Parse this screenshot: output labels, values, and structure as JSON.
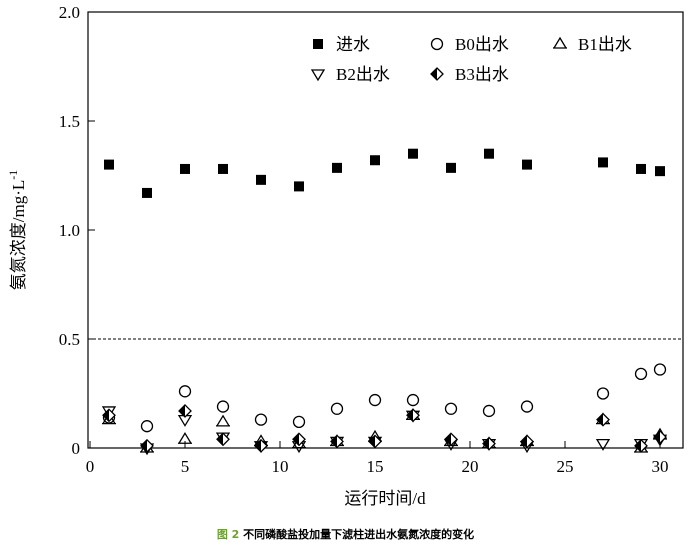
{
  "chart_data": {
    "type": "scatter",
    "xlabel": "运行时间/d",
    "ylabel": "氨氮浓度/mg·L",
    "ylabel_sup": "-1",
    "xlim": [
      0,
      31.2
    ],
    "ylim": [
      0,
      2.0
    ],
    "xticks": [
      0,
      5,
      10,
      15,
      20,
      25,
      30
    ],
    "yticks": [
      "0",
      "0.5",
      "1.0",
      "1.5",
      "2.0"
    ],
    "reference_line": {
      "y": 0.5,
      "style": "dashed"
    },
    "grid": false,
    "legend_placement": "top-right",
    "x": [
      1,
      3,
      5,
      7,
      9,
      11,
      13,
      15,
      17,
      19,
      21,
      23,
      27,
      29,
      30
    ],
    "series": [
      {
        "name": "进水",
        "marker": "filled-square",
        "values": [
          1.3,
          1.17,
          1.28,
          1.28,
          1.23,
          1.2,
          1.285,
          1.32,
          1.35,
          1.285,
          1.35,
          1.3,
          1.31,
          1.28,
          1.27
        ]
      },
      {
        "name": "B0出水",
        "marker": "open-circle",
        "values": [
          0.14,
          0.1,
          0.26,
          0.19,
          0.13,
          0.12,
          0.18,
          0.22,
          0.22,
          0.18,
          0.17,
          0.19,
          0.25,
          0.34,
          0.36
        ]
      },
      {
        "name": "B1出水",
        "marker": "open-triangle-up",
        "values": [
          0.13,
          0.0,
          0.04,
          0.12,
          0.03,
          0.02,
          0.03,
          0.05,
          0.15,
          0.03,
          0.02,
          0.03,
          0.13,
          0.0,
          0.06
        ]
      },
      {
        "name": "B2出水",
        "marker": "open-triangle-down",
        "values": [
          0.17,
          0.0,
          0.13,
          0.05,
          0.01,
          0.01,
          0.03,
          0.03,
          0.15,
          0.02,
          0.02,
          0.01,
          0.02,
          0.02,
          0.04
        ]
      },
      {
        "name": "B3出水",
        "marker": "half-filled-diamond",
        "values": [
          0.15,
          0.01,
          0.17,
          0.04,
          0.01,
          0.04,
          0.03,
          0.03,
          0.15,
          0.04,
          0.02,
          0.03,
          0.13,
          0.01,
          0.05
        ]
      }
    ]
  },
  "caption": {
    "label": "图 2",
    "text": "不同磷酸盐投加量下滤柱进出水氨氮浓度的变化"
  }
}
